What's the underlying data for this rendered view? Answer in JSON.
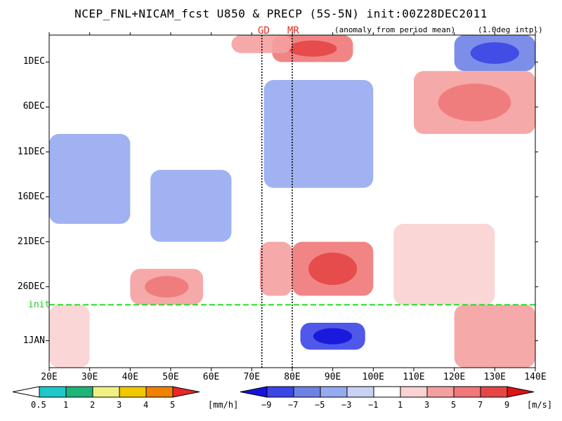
{
  "title": "NCEP_FNL+NICAM_fcst U850 & PRECP (5S-5N) init:00Z28DEC2011",
  "note_anomaly": "(anomaly from period mean)",
  "note_interp": "(1.0deg intpl)",
  "markers": [
    {
      "label": "GD",
      "lon": 72.5
    },
    {
      "label": "MR",
      "lon": 80
    }
  ],
  "init_label": "init",
  "chart_data": {
    "type": "heatmap",
    "title": "NCEP_FNL+NICAM_fcst U850 & PRECP (5S-5N) init:00Z28DEC2011",
    "x_range": [
      20,
      140
    ],
    "x_ticks": [
      "20E",
      "30E",
      "40E",
      "50E",
      "60E",
      "70E",
      "80E",
      "90E",
      "100E",
      "110E",
      "120E",
      "130E",
      "140E"
    ],
    "x_tick_values": [
      20,
      30,
      40,
      50,
      60,
      70,
      80,
      90,
      100,
      110,
      120,
      130,
      140
    ],
    "y_ticks": [
      "1DEC",
      "6DEC",
      "11DEC",
      "16DEC",
      "21DEC",
      "26DEC",
      "1JAN"
    ],
    "y_tick_days": [
      4,
      9,
      14,
      19,
      24,
      29,
      35
    ],
    "time_range_days": [
      1,
      38
    ],
    "init_day": 31,
    "precip_colorbar": {
      "unit": "[mm/h]",
      "labels": [
        "0.5",
        "1",
        "2",
        "3",
        "4",
        "5"
      ],
      "colors": [
        "#ffffff",
        "#1ec8c8",
        "#1eb478",
        "#f0f082",
        "#f0c800",
        "#f08200",
        "#e62828"
      ]
    },
    "u850_colorbar": {
      "unit": "[m/s]",
      "labels": [
        "−9",
        "−7",
        "−5",
        "−3",
        "−1",
        "1",
        "3",
        "5",
        "7",
        "9"
      ],
      "colors": [
        "#1414dc",
        "#3c46e6",
        "#6e82e6",
        "#96aaf0",
        "#c8d2f5",
        "#ffffff",
        "#fad2d2",
        "#f5a0a0",
        "#f07878",
        "#e64646",
        "#dc1414"
      ]
    },
    "u850_anomaly_regions": [
      {
        "lon": [
          75,
          95
        ],
        "day": [
          1,
          4
        ],
        "value": 6
      },
      {
        "lon": [
          65,
          80
        ],
        "day": [
          1,
          3
        ],
        "value": 4
      },
      {
        "lon": [
          120,
          140
        ],
        "day": [
          1,
          5
        ],
        "value": -6
      },
      {
        "lon": [
          110,
          140
        ],
        "day": [
          5,
          12
        ],
        "value": 5
      },
      {
        "lon": [
          73,
          100
        ],
        "day": [
          6,
          18
        ],
        "value": -4
      },
      {
        "lon": [
          20,
          40
        ],
        "day": [
          12,
          22
        ],
        "value": -3
      },
      {
        "lon": [
          45,
          65
        ],
        "day": [
          16,
          24
        ],
        "value": -3
      },
      {
        "lon": [
          80,
          100
        ],
        "day": [
          24,
          30
        ],
        "value": 7
      },
      {
        "lon": [
          72,
          80
        ],
        "day": [
          24,
          30
        ],
        "value": 4
      },
      {
        "lon": [
          40,
          58
        ],
        "day": [
          27,
          31
        ],
        "value": 5
      },
      {
        "lon": [
          105,
          130
        ],
        "day": [
          22,
          31
        ],
        "value": 2
      },
      {
        "lon": [
          82,
          98
        ],
        "day": [
          33,
          36
        ],
        "value": -7
      },
      {
        "lon": [
          120,
          140
        ],
        "day": [
          31,
          38
        ],
        "value": 4
      },
      {
        "lon": [
          20,
          30
        ],
        "day": [
          31,
          38
        ],
        "value": 3
      }
    ]
  }
}
